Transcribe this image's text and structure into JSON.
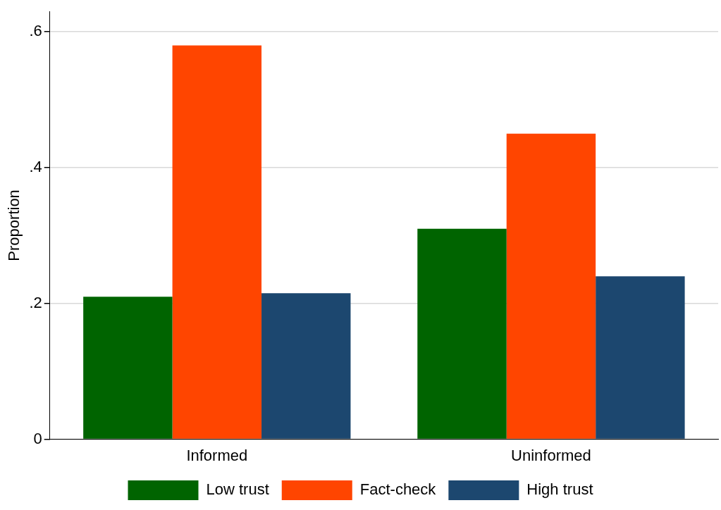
{
  "chart_data": {
    "type": "bar",
    "ylabel": "Proportion",
    "categories": [
      "Informed",
      "Uninformed"
    ],
    "series": [
      {
        "name": "Low trust",
        "color": "#006400",
        "values": [
          0.21,
          0.31
        ]
      },
      {
        "name": "Fact-check",
        "color": "#ff4500",
        "values": [
          0.58,
          0.45
        ]
      },
      {
        "name": "High trust",
        "color": "#1c476f",
        "values": [
          0.215,
          0.24
        ]
      }
    ],
    "ylim": [
      0,
      0.63
    ],
    "yticks": [
      {
        "value": 0,
        "label": "0"
      },
      {
        "value": 0.2,
        "label": ".2"
      },
      {
        "value": 0.4,
        "label": ".4"
      },
      {
        "value": 0.6,
        "label": ".6"
      }
    ],
    "grid": "y",
    "legend": "bottom"
  }
}
